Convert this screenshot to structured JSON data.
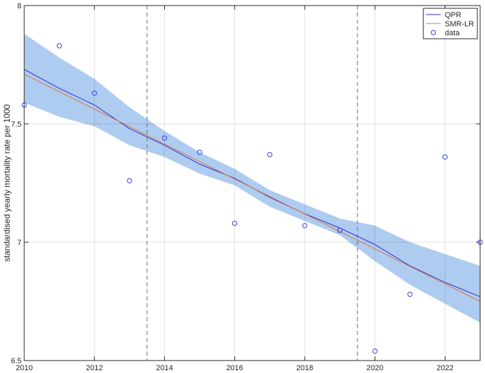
{
  "chart_data": {
    "type": "line",
    "title": "",
    "xlabel": "",
    "ylabel": "standardised yearly mortality rate per 1000",
    "xlim": [
      2010,
      2023
    ],
    "ylim": [
      6.5,
      8
    ],
    "xticks": [
      2010,
      2012,
      2014,
      2016,
      2018,
      2020,
      2022
    ],
    "xtick_labels": [
      "2010",
      "2012",
      "2014",
      "2016",
      "2018",
      "2020",
      "2022"
    ],
    "yticks": [
      6.5,
      7,
      7.5,
      8
    ],
    "ytick_labels": [
      "6.5",
      "7",
      "7.5",
      "8"
    ],
    "grid": true,
    "legend_position": "top-right",
    "vertical_dashed_lines": [
      2013.5,
      2019.5
    ],
    "band": {
      "color": "#aecbf0",
      "x": [
        2010,
        2011,
        2012,
        2013,
        2014,
        2015,
        2016,
        2017,
        2018,
        2019,
        2020,
        2021,
        2022,
        2023
      ],
      "upper": [
        7.88,
        7.78,
        7.69,
        7.57,
        7.47,
        7.38,
        7.31,
        7.22,
        7.16,
        7.1,
        7.07,
        7.0,
        6.95,
        6.9
      ],
      "lower": [
        7.59,
        7.53,
        7.49,
        7.41,
        7.36,
        7.29,
        7.24,
        7.15,
        7.09,
        7.03,
        6.92,
        6.82,
        6.74,
        6.66
      ]
    },
    "series": [
      {
        "name": "QPR",
        "style": "line",
        "color": "#2b2bd0",
        "x": [
          2010,
          2011,
          2012,
          2013,
          2014,
          2015,
          2016,
          2017,
          2018,
          2019,
          2020,
          2021,
          2022,
          2023
        ],
        "values": [
          7.73,
          7.65,
          7.58,
          7.48,
          7.41,
          7.33,
          7.27,
          7.19,
          7.12,
          7.06,
          6.99,
          6.9,
          6.83,
          6.77
        ]
      },
      {
        "name": "SMR-LR",
        "style": "line",
        "color": "#d9793c",
        "x": [
          2010,
          2023
        ],
        "values": [
          7.71,
          6.75
        ]
      },
      {
        "name": "data",
        "style": "scatter",
        "color": "#3a3adf",
        "x": [
          2010,
          2011,
          2012,
          2013,
          2014,
          2015,
          2016,
          2017,
          2018,
          2019,
          2020,
          2021,
          2022,
          2023
        ],
        "values": [
          7.58,
          7.83,
          7.63,
          7.26,
          7.44,
          7.38,
          7.08,
          7.37,
          7.07,
          7.05,
          6.54,
          6.78,
          7.36,
          7.0
        ]
      }
    ]
  }
}
